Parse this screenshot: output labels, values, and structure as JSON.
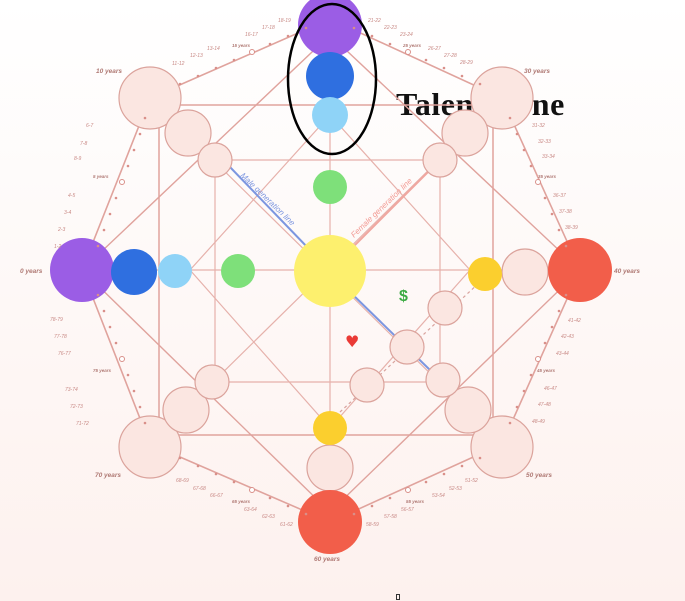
{
  "title": "Talent Zone",
  "age_labels": {
    "top_left": "10 years",
    "top_right": "30 years",
    "left": "0 years",
    "right": "40 years",
    "bottom_left": "70 years",
    "bottom_right": "50 years",
    "bottom": "60 years"
  },
  "mid_labels": {
    "upper_left": "5 years",
    "top_left": "15 years",
    "top_right": "25 years",
    "upper_right": "35 years",
    "lower_left": "75 years",
    "bottom_left": "65 years",
    "bottom_right": "55 years",
    "lower_right": "45 years"
  },
  "tick_labels": {
    "left_upper": [
      "6-7",
      "7-8",
      "8-9",
      "4-5",
      "3-4",
      "2-3",
      "1-2"
    ],
    "left_lower": [
      "78-79",
      "77-78",
      "76-77",
      "73-74",
      "72-73",
      "71-72"
    ],
    "top_left": [
      "11-12",
      "12-13",
      "13-14",
      "16-17",
      "17-18",
      "18-19"
    ],
    "top_right": [
      "21-22",
      "22-23",
      "23-24",
      "26-27",
      "27-28",
      "28-29"
    ],
    "right_upper": [
      "31-32",
      "32-33",
      "33-34",
      "36-37",
      "37-38",
      "38-39"
    ],
    "right_lower": [
      "41-42",
      "42-43",
      "43-44",
      "46-47",
      "47-48",
      "48-49"
    ],
    "bottom_left": [
      "68-69",
      "67-68",
      "66-67",
      "63-64",
      "62-63",
      "61-62"
    ],
    "bottom_right": [
      "58-59",
      "57-58",
      "56-57",
      "53-54",
      "52-53",
      "51-52"
    ]
  },
  "line_labels": {
    "male": "Male generation line",
    "female": "Female generation line"
  },
  "symbols": {
    "money": "$",
    "heart": "♥"
  },
  "colors": {
    "purple": "#9b5de5",
    "blue": "#2f6fe0",
    "light_blue": "#8fd3f7",
    "green": "#7ee07a",
    "yellow": "#fdf06e",
    "gold": "#fbcf2e",
    "red": "#f25e4a",
    "pale": "#fbe6e1",
    "line": "#e4a9a3",
    "money": "#3cab43",
    "heart": "#ea3a36"
  }
}
